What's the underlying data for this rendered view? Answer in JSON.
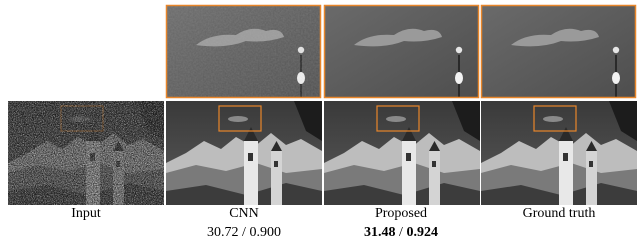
{
  "figure": {
    "panels": [
      {
        "label": "Input"
      },
      {
        "label": "CNN",
        "psnr": "30.72",
        "ssim": "0.900"
      },
      {
        "label": "Proposed",
        "psnr": "31.48",
        "ssim": "0.924"
      },
      {
        "label": "Ground truth"
      }
    ],
    "separator": "/"
  }
}
